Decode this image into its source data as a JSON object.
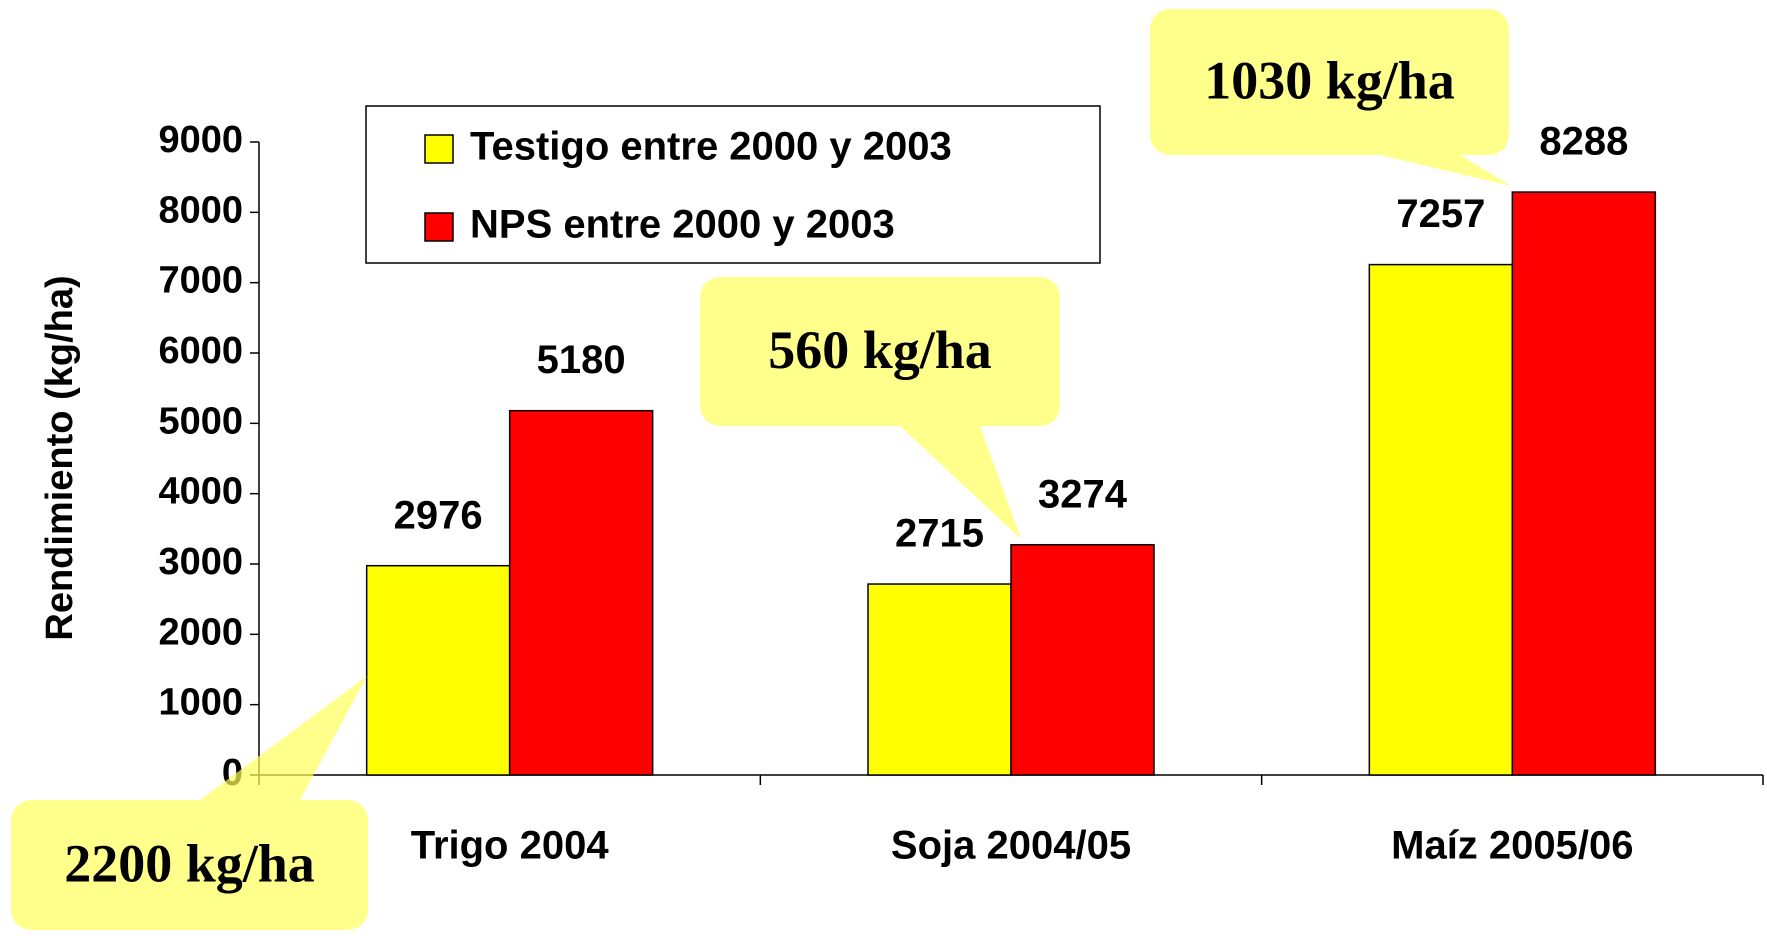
{
  "chart_data": {
    "type": "bar",
    "ylabel": "Rendimiento (kg/ha)",
    "categories": [
      "Trigo 2004",
      "Soja 2004/05",
      "Maíz 2005/06"
    ],
    "series": [
      {
        "name": "Testigo entre 2000 y 2003",
        "color": "#ffff00",
        "values": [
          2976,
          2715,
          7257
        ]
      },
      {
        "name": "NPS entre 2000 y 2003",
        "color": "#ff0000",
        "values": [
          5180,
          3274,
          8288
        ]
      }
    ],
    "ylim": [
      0,
      9000
    ],
    "yticks": [
      0,
      1000,
      2000,
      3000,
      4000,
      5000,
      6000,
      7000,
      8000,
      9000
    ],
    "grid": false,
    "legend": "top",
    "annotations": [
      "2200 kg/ha",
      "560 kg/ha",
      "1030 kg/ha"
    ]
  }
}
